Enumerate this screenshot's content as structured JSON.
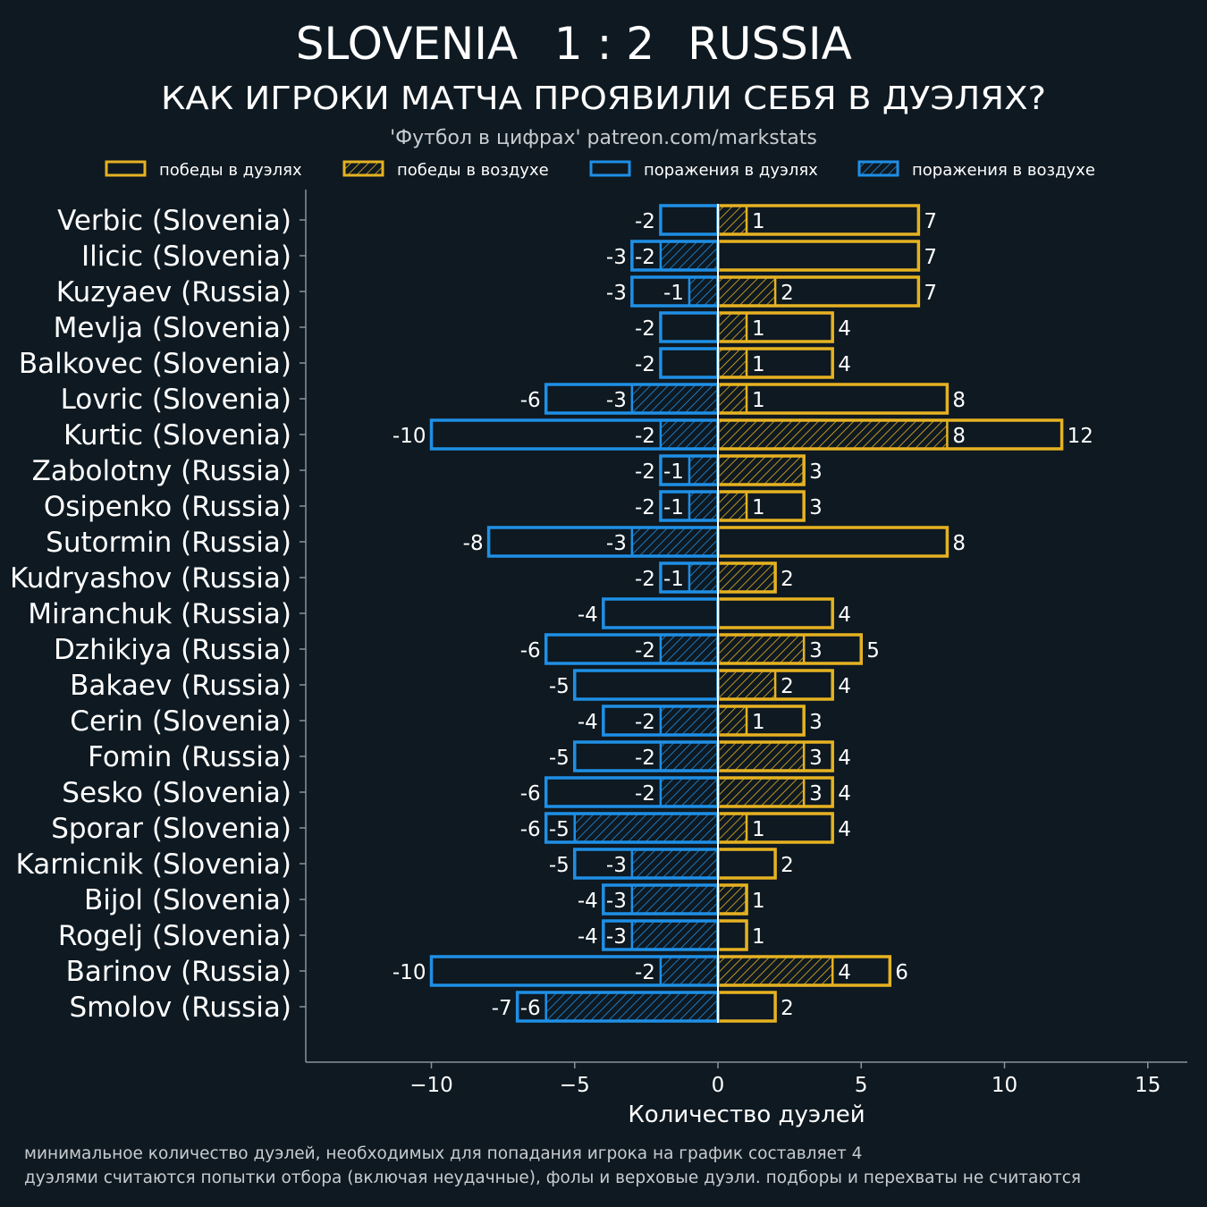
{
  "header": {
    "home_team": "SLOVENIA",
    "score": "1 : 2",
    "away_team": "RUSSIA",
    "subtitle": "КАК ИГРОКИ МАТЧА ПРОЯВИЛИ СЕБЯ В ДУЭЛЯХ?",
    "source": "'Футбол в цифрах' patreon.com/markstats"
  },
  "footnotes": [
    "минимальное количество дуэлей, необходимых для попадания игрока на график составляет 4",
    "дуэлями считаются попытки отбора (включая неудачные), фолы и верховые дуэли. подборы и перехваты не считаются"
  ],
  "colors": {
    "background": "#0e1921",
    "wins": "#e6b222",
    "losses": "#1f8fe6",
    "axis": "#8a939b"
  },
  "chart_data": {
    "type": "bar",
    "orientation": "horizontal",
    "xlabel": "Количество дуэлей",
    "xlim": [
      -14,
      16.5
    ],
    "xticks": [
      -10,
      -5,
      0,
      5,
      10,
      15
    ],
    "xtick_labels": [
      "−10",
      "−5",
      "0",
      "5",
      "10",
      "15"
    ],
    "legend": {
      "placement": "top",
      "entries": [
        {
          "key": "wins_total",
          "label": "победы в дуэлях",
          "color": "#e6b222",
          "hatched": false
        },
        {
          "key": "wins_air",
          "label": "победы в воздухе",
          "color": "#e6b222",
          "hatched": true
        },
        {
          "key": "losses_total",
          "label": "поражения в дуэлях",
          "color": "#1f8fe6",
          "hatched": false
        },
        {
          "key": "losses_air",
          "label": "поражения в воздухе",
          "color": "#1f8fe6",
          "hatched": true
        }
      ]
    },
    "players": [
      {
        "name": "Verbic (Slovenia)",
        "wins_total": 7,
        "wins_air": 1,
        "losses_total": -2,
        "losses_air": 0
      },
      {
        "name": "Ilicic (Slovenia)",
        "wins_total": 7,
        "wins_air": 0,
        "losses_total": -3,
        "losses_air": -2
      },
      {
        "name": "Kuzyaev (Russia)",
        "wins_total": 7,
        "wins_air": 2,
        "losses_total": -3,
        "losses_air": -1
      },
      {
        "name": "Mevlja (Slovenia)",
        "wins_total": 4,
        "wins_air": 1,
        "losses_total": -2,
        "losses_air": 0
      },
      {
        "name": "Balkovec (Slovenia)",
        "wins_total": 4,
        "wins_air": 1,
        "losses_total": -2,
        "losses_air": 0
      },
      {
        "name": "Lovric (Slovenia)",
        "wins_total": 8,
        "wins_air": 1,
        "losses_total": -6,
        "losses_air": -3
      },
      {
        "name": "Kurtic (Slovenia)",
        "wins_total": 12,
        "wins_air": 8,
        "losses_total": -10,
        "losses_air": -2
      },
      {
        "name": "Zabolotny (Russia)",
        "wins_total": 3,
        "wins_air": 3,
        "losses_total": -2,
        "losses_air": -1
      },
      {
        "name": "Osipenko (Russia)",
        "wins_total": 3,
        "wins_air": 1,
        "losses_total": -2,
        "losses_air": -1
      },
      {
        "name": "Sutormin (Russia)",
        "wins_total": 8,
        "wins_air": 0,
        "losses_total": -8,
        "losses_air": -3
      },
      {
        "name": "Kudryashov (Russia)",
        "wins_total": 2,
        "wins_air": 2,
        "losses_total": -2,
        "losses_air": -1
      },
      {
        "name": "Miranchuk (Russia)",
        "wins_total": 4,
        "wins_air": 0,
        "losses_total": -4,
        "losses_air": 0
      },
      {
        "name": "Dzhikiya (Russia)",
        "wins_total": 5,
        "wins_air": 3,
        "losses_total": -6,
        "losses_air": -2
      },
      {
        "name": "Bakaev (Russia)",
        "wins_total": 4,
        "wins_air": 2,
        "losses_total": -5,
        "losses_air": 0
      },
      {
        "name": "Cerin (Slovenia)",
        "wins_total": 3,
        "wins_air": 1,
        "losses_total": -4,
        "losses_air": -2
      },
      {
        "name": "Fomin (Russia)",
        "wins_total": 4,
        "wins_air": 3,
        "losses_total": -5,
        "losses_air": -2
      },
      {
        "name": "Sesko (Slovenia)",
        "wins_total": 4,
        "wins_air": 3,
        "losses_total": -6,
        "losses_air": -2
      },
      {
        "name": "Sporar (Slovenia)",
        "wins_total": 4,
        "wins_air": 1,
        "losses_total": -6,
        "losses_air": -5
      },
      {
        "name": "Karnicnik (Slovenia)",
        "wins_total": 2,
        "wins_air": 0,
        "losses_total": -5,
        "losses_air": -3
      },
      {
        "name": "Bijol (Slovenia)",
        "wins_total": 1,
        "wins_air": 1,
        "losses_total": -4,
        "losses_air": -3
      },
      {
        "name": "Rogelj (Slovenia)",
        "wins_total": 1,
        "wins_air": 0,
        "losses_total": -4,
        "losses_air": -3
      },
      {
        "name": "Barinov (Russia)",
        "wins_total": 6,
        "wins_air": 4,
        "losses_total": -10,
        "losses_air": -2
      },
      {
        "name": "Smolov (Russia)",
        "wins_total": 2,
        "wins_air": 0,
        "losses_total": -7,
        "losses_air": -6
      }
    ]
  }
}
